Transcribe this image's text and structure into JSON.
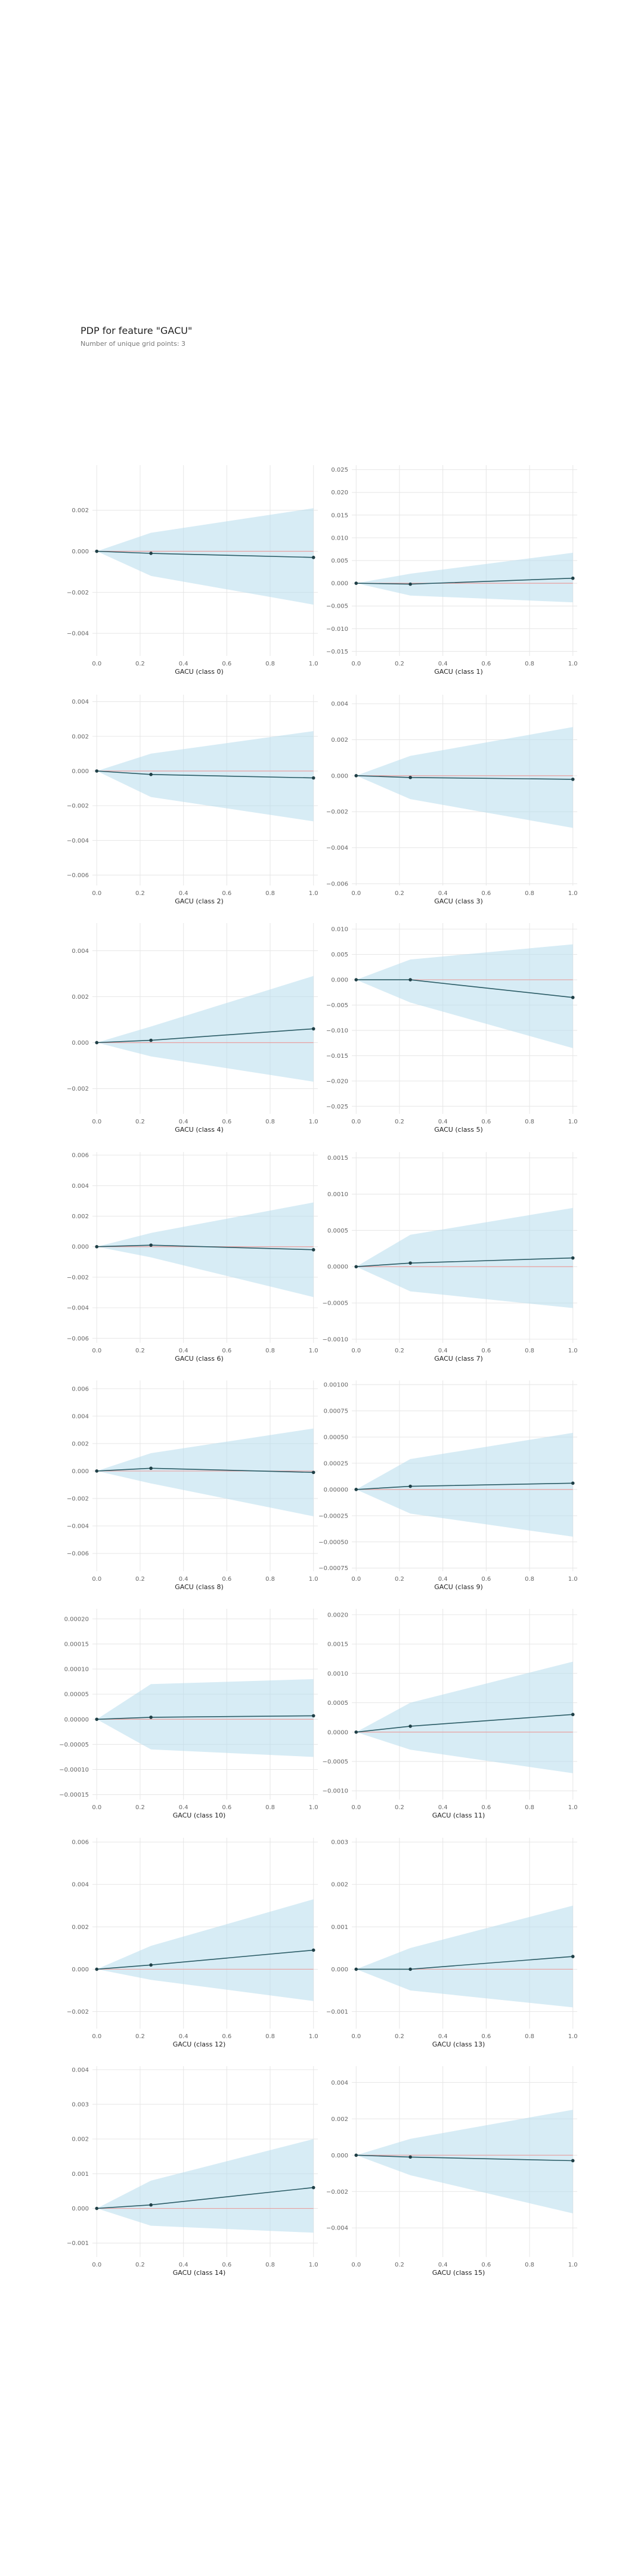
{
  "header": {
    "title": "PDP for feature \"GACU\"",
    "subtitle": "Number of unique grid points: 3"
  },
  "chart_data": [
    {
      "type": "line",
      "xlabel": "GACU (class 0)",
      "x": [
        0,
        0.25,
        1
      ],
      "y": [
        0,
        -0.0001,
        -0.0003
      ],
      "lower": [
        0,
        -0.0012,
        -0.0026
      ],
      "upper": [
        0,
        0.0009,
        0.0021
      ],
      "ylim": [
        -0.0051,
        0.0042
      ],
      "yticks": [
        0.002,
        0,
        -0.002,
        -0.004
      ],
      "ytick_labels": [
        "0.002",
        "0.000",
        "−0.002",
        "−0.004"
      ]
    },
    {
      "type": "line",
      "xlabel": "GACU (class 1)",
      "x": [
        0,
        0.25,
        1
      ],
      "y": [
        0,
        -0.0002,
        0.0011
      ],
      "lower": [
        0,
        -0.0027,
        -0.0042
      ],
      "upper": [
        0,
        0.0021,
        0.0067
      ],
      "ylim": [
        -0.016,
        0.026
      ],
      "yticks": [
        0.025,
        0.02,
        0.015,
        0.01,
        0.005,
        0,
        -0.005,
        -0.01,
        -0.015
      ],
      "ytick_labels": [
        "0.025",
        "0.020",
        "0.015",
        "0.010",
        "0.005",
        "0.000",
        "−0.005",
        "−0.010",
        "−0.015"
      ]
    },
    {
      "type": "line",
      "xlabel": "GACU (class 2)",
      "x": [
        0,
        0.25,
        1
      ],
      "y": [
        0,
        -0.0002,
        -0.0004
      ],
      "lower": [
        0,
        -0.0015,
        -0.0029
      ],
      "upper": [
        0,
        0.001,
        0.0023
      ],
      "ylim": [
        -0.0066,
        0.0044
      ],
      "yticks": [
        0.004,
        0.002,
        0,
        -0.002,
        -0.004,
        -0.006
      ],
      "ytick_labels": [
        "0.004",
        "0.002",
        "0.000",
        "−0.002",
        "−0.004",
        "−0.006"
      ]
    },
    {
      "type": "line",
      "xlabel": "GACU (class 3)",
      "x": [
        0,
        0.25,
        1
      ],
      "y": [
        0,
        -0.0001,
        -0.0002
      ],
      "lower": [
        0,
        -0.0013,
        -0.0029
      ],
      "upper": [
        0,
        0.0011,
        0.0027
      ],
      "ylim": [
        -0.0061,
        0.0045
      ],
      "yticks": [
        0.004,
        0.002,
        0,
        -0.002,
        -0.004,
        -0.006
      ],
      "ytick_labels": [
        "0.004",
        "0.002",
        "0.000",
        "−0.002",
        "−0.004",
        "−0.006"
      ]
    },
    {
      "type": "line",
      "xlabel": "GACU (class 4)",
      "x": [
        0,
        0.25,
        1
      ],
      "y": [
        0,
        0.0001,
        0.0006
      ],
      "lower": [
        0,
        -0.0006,
        -0.0017
      ],
      "upper": [
        0,
        0.0007,
        0.0029
      ],
      "ylim": [
        -0.0031,
        0.0052
      ],
      "yticks": [
        0.004,
        0.002,
        0,
        -0.002
      ],
      "ytick_labels": [
        "0.004",
        "0.002",
        "0.000",
        "−0.002"
      ]
    },
    {
      "type": "line",
      "xlabel": "GACU (class 5)",
      "x": [
        0,
        0.25,
        1
      ],
      "y": [
        0,
        0,
        -0.0035
      ],
      "lower": [
        0,
        -0.0045,
        -0.0135
      ],
      "upper": [
        0,
        0.004,
        0.007
      ],
      "ylim": [
        -0.0265,
        0.0112
      ],
      "yticks": [
        0.01,
        0.005,
        0,
        -0.005,
        -0.01,
        -0.015,
        -0.02,
        -0.025
      ],
      "ytick_labels": [
        "0.010",
        "0.005",
        "0.000",
        "−0.005",
        "−0.010",
        "−0.015",
        "−0.020",
        "−0.025"
      ]
    },
    {
      "type": "line",
      "xlabel": "GACU (class 6)",
      "x": [
        0,
        0.25,
        1
      ],
      "y": [
        0,
        0.0001,
        -0.0002
      ],
      "lower": [
        0,
        -0.0007,
        -0.0033
      ],
      "upper": [
        0,
        0.0009,
        0.0029
      ],
      "ylim": [
        -0.0063,
        0.0062
      ],
      "yticks": [
        0.006,
        0.004,
        0.002,
        0,
        -0.002,
        -0.004,
        -0.006
      ],
      "ytick_labels": [
        "0.006",
        "0.004",
        "0.002",
        "0.000",
        "−0.002",
        "−0.004",
        "−0.006"
      ]
    },
    {
      "type": "line",
      "xlabel": "GACU (class 7)",
      "x": [
        0,
        0.25,
        1
      ],
      "y": [
        0,
        5e-05,
        0.00012
      ],
      "lower": [
        0,
        -0.00034,
        -0.00057
      ],
      "upper": [
        0,
        0.00044,
        0.00081
      ],
      "ylim": [
        -0.00105,
        0.00158
      ],
      "yticks": [
        0.0015,
        0.001,
        0.0005,
        0,
        -0.0005,
        -0.001
      ],
      "ytick_labels": [
        "0.0015",
        "0.0010",
        "0.0005",
        "0.0000",
        "−0.0005",
        "−0.0010"
      ]
    },
    {
      "type": "line",
      "xlabel": "GACU (class 8)",
      "x": [
        0,
        0.25,
        1
      ],
      "y": [
        0,
        0.0002,
        -0.0001
      ],
      "lower": [
        0,
        -0.0009,
        -0.0033
      ],
      "upper": [
        0,
        0.0013,
        0.0031
      ],
      "ylim": [
        -0.0073,
        0.0066
      ],
      "yticks": [
        0.006,
        0.004,
        0.002,
        0,
        -0.002,
        -0.004,
        -0.006
      ],
      "ytick_labels": [
        "0.006",
        "0.004",
        "0.002",
        "0.000",
        "−0.002",
        "−0.004",
        "−0.006"
      ]
    },
    {
      "type": "line",
      "xlabel": "GACU (class 9)",
      "x": [
        0,
        0.25,
        1
      ],
      "y": [
        0,
        3e-05,
        6e-05
      ],
      "lower": [
        0,
        -0.00023,
        -0.00045
      ],
      "upper": [
        0,
        0.00029,
        0.00054
      ],
      "ylim": [
        -0.00078,
        0.00104
      ],
      "yticks": [
        0.001,
        0.00075,
        0.0005,
        0.00025,
        0,
        -0.00025,
        -0.0005,
        -0.00075
      ],
      "ytick_labels": [
        "0.00100",
        "0.00075",
        "0.00050",
        "0.00025",
        "0.00000",
        "−0.00025",
        "−0.00050",
        "−0.00075"
      ]
    },
    {
      "type": "line",
      "xlabel": "GACU (class 10)",
      "x": [
        0,
        0.25,
        1
      ],
      "y": [
        0,
        4e-06,
        7e-06
      ],
      "lower": [
        0,
        -6e-05,
        -7.5e-05
      ],
      "upper": [
        0,
        7e-05,
        8e-05
      ],
      "ylim": [
        -0.00016,
        0.00022
      ],
      "yticks": [
        0.0002,
        0.00015,
        0.0001,
        5e-05,
        0,
        -5e-05,
        -0.0001,
        -0.00015
      ],
      "ytick_labels": [
        "0.00020",
        "0.00015",
        "0.00010",
        "0.00005",
        "0.00000",
        "−0.00005",
        "−0.00010",
        "−0.00015"
      ]
    },
    {
      "type": "line",
      "xlabel": "GACU (class 11)",
      "x": [
        0,
        0.25,
        1
      ],
      "y": [
        0,
        0.0001,
        0.0003
      ],
      "lower": [
        0,
        -0.0003,
        -0.0007
      ],
      "upper": [
        0,
        0.0005,
        0.0012
      ],
      "ylim": [
        -0.00115,
        0.0021
      ],
      "yticks": [
        0.002,
        0.0015,
        0.001,
        0.0005,
        0,
        -0.0005,
        -0.001
      ],
      "ytick_labels": [
        "0.0020",
        "0.0015",
        "0.0010",
        "0.0005",
        "0.0000",
        "−0.0005",
        "−0.0010"
      ]
    },
    {
      "type": "line",
      "xlabel": "GACU (class 12)",
      "x": [
        0,
        0.25,
        1
      ],
      "y": [
        0,
        0.0002,
        0.0009
      ],
      "lower": [
        0,
        -0.0005,
        -0.0015
      ],
      "upper": [
        0,
        0.0011,
        0.0033
      ],
      "ylim": [
        -0.0028,
        0.0062
      ],
      "yticks": [
        0.006,
        0.004,
        0.002,
        0,
        -0.002
      ],
      "ytick_labels": [
        "0.006",
        "0.004",
        "0.002",
        "0.000",
        "−0.002"
      ]
    },
    {
      "type": "line",
      "xlabel": "GACU (class 13)",
      "x": [
        0,
        0.25,
        1
      ],
      "y": [
        0,
        0,
        0.0003
      ],
      "lower": [
        0,
        -0.0005,
        -0.0009
      ],
      "upper": [
        0,
        0.0005,
        0.0015
      ],
      "ylim": [
        -0.0014,
        0.0031
      ],
      "yticks": [
        0.003,
        0.002,
        0.001,
        0,
        -0.001
      ],
      "ytick_labels": [
        "0.003",
        "0.002",
        "0.001",
        "0.000",
        "−0.001"
      ]
    },
    {
      "type": "line",
      "xlabel": "GACU (class 14)",
      "x": [
        0,
        0.25,
        1
      ],
      "y": [
        0,
        0.0001,
        0.0006
      ],
      "lower": [
        0,
        -0.0005,
        -0.0007
      ],
      "upper": [
        0,
        0.0008,
        0.002
      ],
      "ylim": [
        -0.0014,
        0.0041
      ],
      "yticks": [
        0.004,
        0.003,
        0.002,
        0.001,
        0,
        -0.001
      ],
      "ytick_labels": [
        "0.004",
        "0.003",
        "0.002",
        "0.001",
        "0.000",
        "−0.001"
      ]
    },
    {
      "type": "line",
      "xlabel": "GACU (class 15)",
      "x": [
        0,
        0.25,
        1
      ],
      "y": [
        0,
        -0.0001,
        -0.0003
      ],
      "lower": [
        0,
        -0.0011,
        -0.0032
      ],
      "upper": [
        0,
        0.0009,
        0.0025
      ],
      "ylim": [
        -0.0056,
        0.0049
      ],
      "yticks": [
        0.004,
        0.002,
        0,
        -0.002,
        -0.004
      ],
      "ytick_labels": [
        "0.004",
        "0.002",
        "0.000",
        "−0.002",
        "−0.004"
      ]
    }
  ],
  "x_axis": {
    "ticks": [
      0,
      0.2,
      0.4,
      0.6,
      0.8,
      1
    ],
    "tick_labels": [
      "0.0",
      "0.2",
      "0.4",
      "0.6",
      "0.8",
      "1.0"
    ],
    "xlim": [
      -0.02,
      1.02
    ]
  },
  "colors": {
    "band": "#b7ddec",
    "line": "#2b5c66",
    "marker": "#1f3f46",
    "baseline": "#e8a0a0",
    "grid": "#e6e6e6"
  }
}
